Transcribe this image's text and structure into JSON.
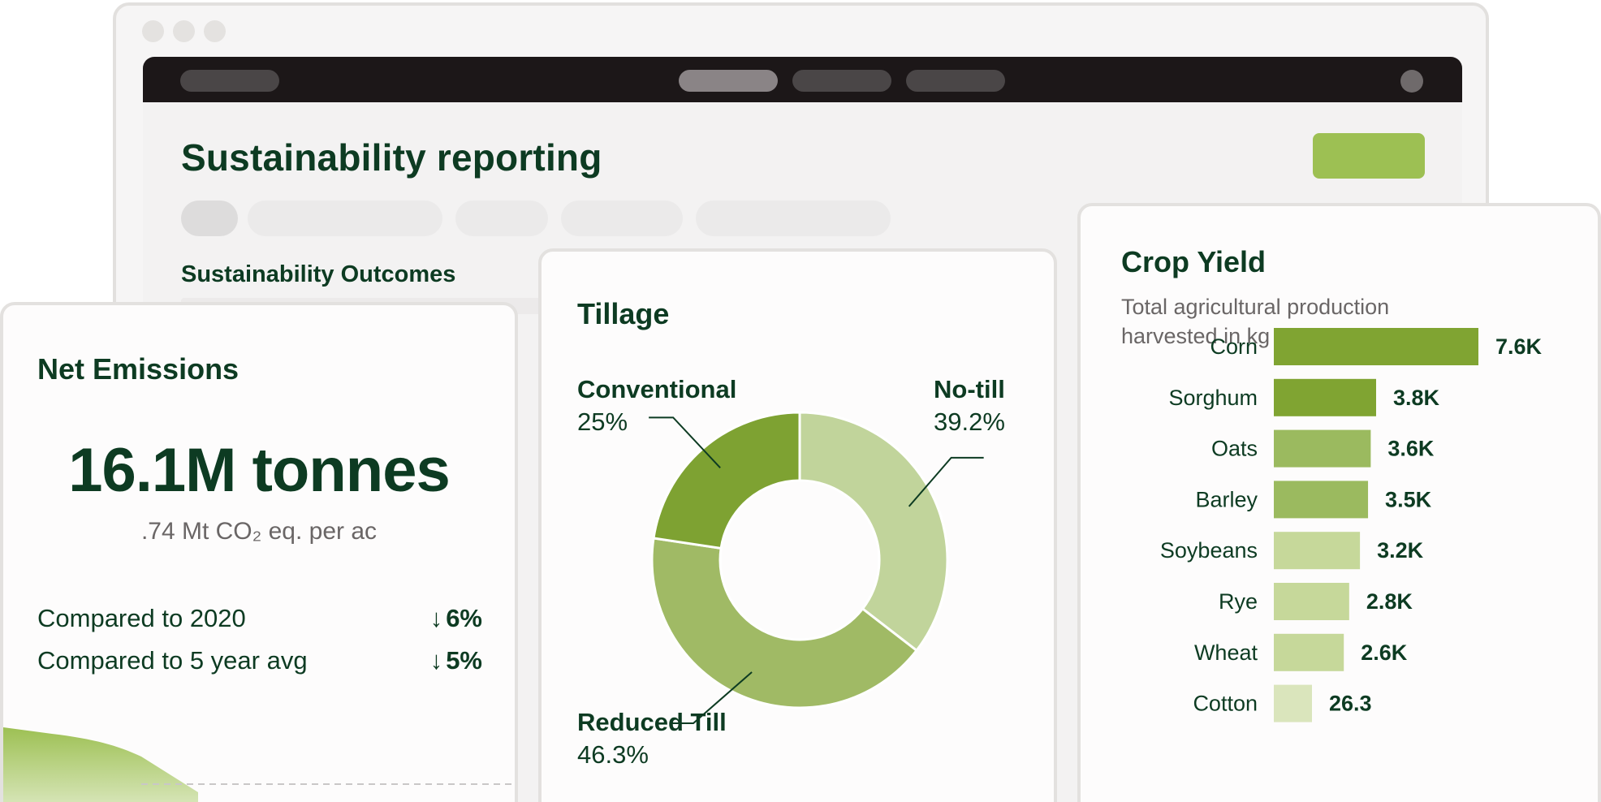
{
  "page": {
    "title": "Sustainability reporting",
    "section_title": "Sustainability Outcomes"
  },
  "emissions": {
    "title": "Net Emissions",
    "value": "16.1M tonnes",
    "subnote": ".74 Mt CO₂ eq. per ac",
    "comparisons": [
      {
        "label": "Compared to 2020",
        "arrow": "↓",
        "value": "6%"
      },
      {
        "label": "Compared to 5 year avg",
        "arrow": "↓",
        "value": "5%"
      }
    ]
  },
  "tillage": {
    "title": "Tillage",
    "segments": [
      {
        "name": "No-till",
        "percent": 39.2,
        "label": "39.2%",
        "color": "#c1d49b"
      },
      {
        "name": "Reduced Till",
        "percent": 46.3,
        "label": "46.3%",
        "color": "#a0ba65"
      },
      {
        "name": "Conventional",
        "percent": 25,
        "label": "25%",
        "color": "#7ea232"
      }
    ]
  },
  "crop_yield": {
    "title": "Crop Yield",
    "subtitle": "Total agricultural production harvested in kg per acre"
  },
  "chart_data": {
    "type": "bar",
    "orientation": "horizontal",
    "title": "Crop Yield",
    "subtitle": "Total agricultural production harvested in kg per acre",
    "categories": [
      "Corn",
      "Sorghum",
      "Oats",
      "Barley",
      "Soybeans",
      "Rye",
      "Wheat",
      "Cotton"
    ],
    "values": [
      7600,
      3800,
      3600,
      3500,
      3200,
      2800,
      2600,
      26.3
    ],
    "value_labels": [
      "7.6K",
      "3.8K",
      "3.6K",
      "3.5K",
      "3.2K",
      "2.8K",
      "2.6K",
      "26.3"
    ],
    "colors": [
      "#80a432",
      "#80a432",
      "#9bba5f",
      "#9bba5f",
      "#c6d89a",
      "#c6d89a",
      "#c6d89a",
      "#dae5bc"
    ]
  },
  "colors": {
    "brand_dark_green": "#0d3b22",
    "accent_green": "#9dc053",
    "topbar": "#1c1718"
  }
}
